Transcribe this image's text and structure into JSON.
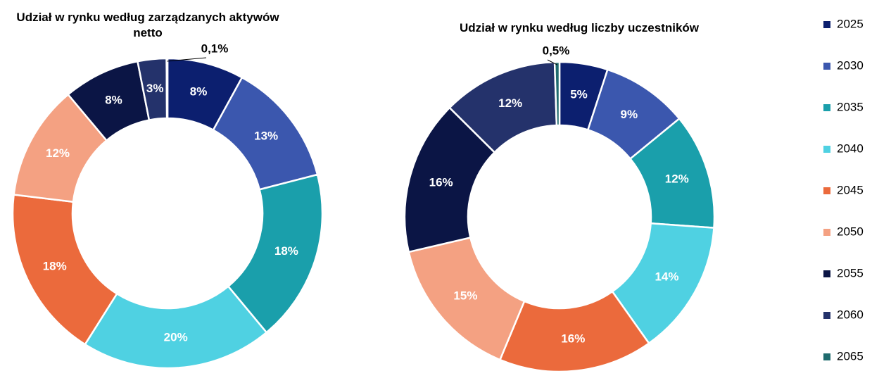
{
  "chart_data": [
    {
      "type": "donut",
      "title": "Udział w rynku według zarządzanych aktywów netto",
      "values": [
        8,
        13,
        18,
        20,
        18,
        12,
        8,
        3,
        0.1
      ],
      "value_labels": [
        "8%",
        "13%",
        "18%",
        "20%",
        "18%",
        "12%",
        "8%",
        "3%",
        "0,1%"
      ]
    },
    {
      "type": "donut",
      "title": "Udział w rynku według liczby uczestników",
      "values": [
        5,
        9,
        12,
        14,
        16,
        15,
        16,
        12,
        0.5
      ],
      "value_labels": [
        "5%",
        "9%",
        "12%",
        "14%",
        "16%",
        "15%",
        "16%",
        "12%",
        "0,5%"
      ]
    }
  ],
  "legend": {
    "categories": [
      "2025",
      "2030",
      "2035",
      "2040",
      "2045",
      "2050",
      "2055",
      "2060",
      "2065"
    ],
    "colors": [
      "#0c1f6f",
      "#3b57ae",
      "#1a9fab",
      "#4fd1e2",
      "#eb6a3c",
      "#f4a182",
      "#0b1545",
      "#24326b",
      "#1f6b6e"
    ]
  }
}
